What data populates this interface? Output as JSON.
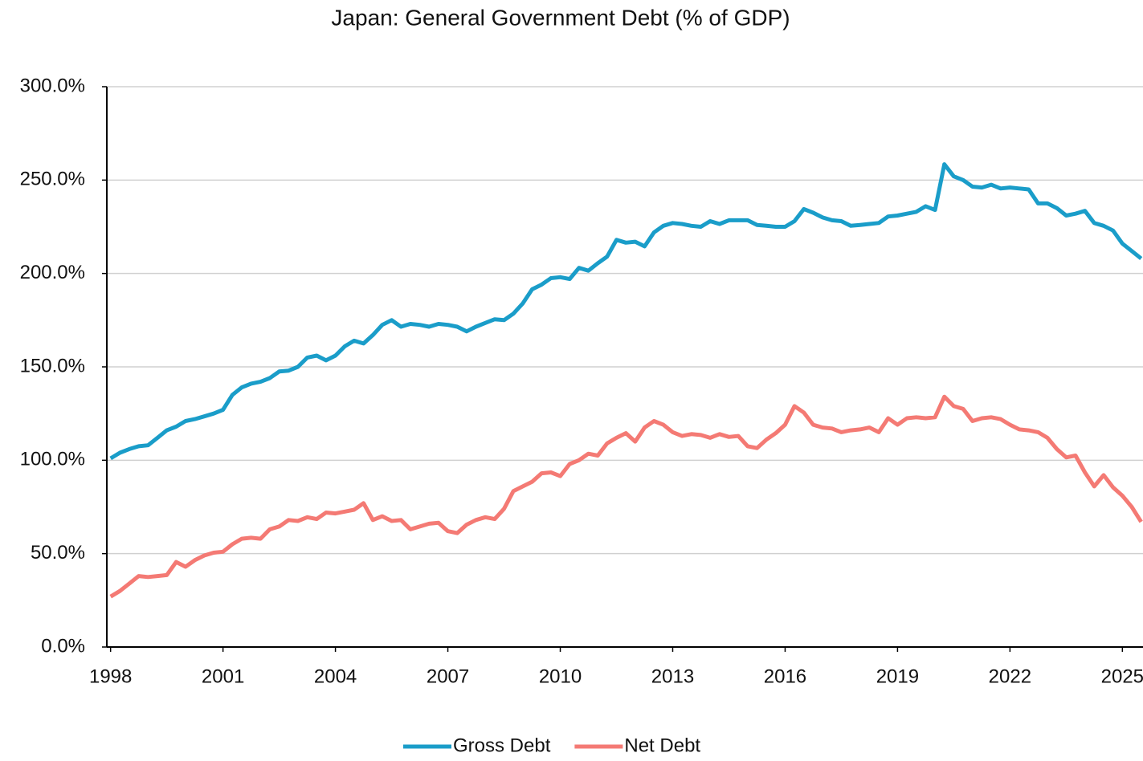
{
  "chart_data": {
    "type": "line",
    "title": "Japan: General Government Debt (% of GDP)",
    "x": [
      1998,
      1998.25,
      1998.5,
      1998.75,
      1999,
      1999.25,
      1999.5,
      1999.75,
      2000,
      2000.25,
      2000.5,
      2000.75,
      2001,
      2001.25,
      2001.5,
      2001.75,
      2002,
      2002.25,
      2002.5,
      2002.75,
      2003,
      2003.25,
      2003.5,
      2003.75,
      2004,
      2004.25,
      2004.5,
      2004.75,
      2005,
      2005.25,
      2005.5,
      2005.75,
      2006,
      2006.25,
      2006.5,
      2006.75,
      2007,
      2007.25,
      2007.5,
      2007.75,
      2008,
      2008.25,
      2008.5,
      2008.75,
      2009,
      2009.25,
      2009.5,
      2009.75,
      2010,
      2010.25,
      2010.5,
      2010.75,
      2011,
      2011.25,
      2011.5,
      2011.75,
      2012,
      2012.25,
      2012.5,
      2012.75,
      2013,
      2013.25,
      2013.5,
      2013.75,
      2014,
      2014.25,
      2014.5,
      2014.75,
      2015,
      2015.25,
      2015.5,
      2015.75,
      2016,
      2016.25,
      2016.5,
      2016.75,
      2017,
      2017.25,
      2017.5,
      2017.75,
      2018,
      2018.25,
      2018.5,
      2018.75,
      2019,
      2019.25,
      2019.5,
      2019.75,
      2020,
      2020.25,
      2020.5,
      2020.75,
      2021,
      2021.25,
      2021.5,
      2021.75,
      2022,
      2022.25,
      2022.5,
      2022.75,
      2023,
      2023.25,
      2023.5,
      2023.75,
      2024,
      2024.25,
      2024.5,
      2024.75,
      2025,
      2025.25,
      2025.5
    ],
    "series": [
      {
        "name": "Gross Debt",
        "color": "#1a9dc9",
        "values": [
          101,
          104,
          106,
          107.5,
          108,
          112,
          116,
          118,
          121,
          122,
          123.5,
          125,
          127,
          135,
          139,
          141,
          142,
          144,
          147.5,
          148,
          150,
          155,
          156,
          153.5,
          156,
          161,
          164,
          162.5,
          167,
          172.5,
          175,
          171.5,
          173,
          172.5,
          171.5,
          173,
          172.5,
          171.5,
          169,
          171.5,
          173.5,
          175.5,
          175,
          178.5,
          184,
          191.5,
          194,
          197.5,
          198,
          197,
          203,
          201.5,
          205.5,
          209,
          218,
          216.5,
          217,
          214.5,
          222,
          225.5,
          227,
          226.5,
          225.5,
          225,
          228,
          226.5,
          228.5,
          228.5,
          228.5,
          226,
          225.5,
          225,
          225,
          228,
          234.5,
          232.5,
          230,
          228.5,
          228,
          225.5,
          226,
          226.5,
          227,
          230.5,
          231,
          232,
          233,
          236,
          234,
          258.5,
          252,
          250,
          246.5,
          246,
          247.5,
          245.5,
          246,
          245.5,
          245,
          237.5,
          237.5,
          235,
          231,
          232,
          233.5,
          227,
          225.5,
          223,
          216,
          212,
          208
        ]
      },
      {
        "name": "Net Debt",
        "color": "#f47a74",
        "values": [
          27,
          30,
          34,
          38,
          37.5,
          38,
          38.5,
          45.5,
          43,
          46.5,
          49,
          50.5,
          51,
          55,
          58,
          58.5,
          58,
          63,
          64.5,
          68,
          67.5,
          69.5,
          68.5,
          72,
          71.5,
          72.5,
          73.5,
          77,
          68,
          70,
          67.5,
          68,
          63,
          64.5,
          66,
          66.5,
          62,
          61,
          65.5,
          68,
          69.5,
          68.5,
          74,
          83.5,
          86,
          88.5,
          93,
          93.5,
          91.5,
          98,
          100,
          103.5,
          102.5,
          109,
          112,
          114.5,
          110,
          117.5,
          121,
          119,
          115,
          113,
          114,
          113.5,
          112,
          114,
          112.5,
          113,
          107.5,
          106.5,
          111,
          114.5,
          119,
          129,
          125.5,
          119,
          117.5,
          117,
          115,
          116,
          116.5,
          117.5,
          115,
          122.5,
          119,
          122.5,
          123,
          122.5,
          123,
          134,
          129,
          127.5,
          121,
          122.5,
          123,
          122,
          119,
          116.5,
          116,
          115,
          112,
          106,
          101.5,
          102.5,
          93.5,
          86,
          92,
          85.5,
          81,
          75,
          67
        ]
      }
    ],
    "xlim": [
      1997.9,
      2025.55
    ],
    "xticks": [
      1998,
      2001,
      2004,
      2007,
      2010,
      2013,
      2016,
      2019,
      2022,
      2025
    ],
    "ylim": [
      0,
      300
    ],
    "yticks": [
      {
        "value": 0,
        "label": "0.0%"
      },
      {
        "value": 50,
        "label": "50.0%"
      },
      {
        "value": 100,
        "label": "100.0%"
      },
      {
        "value": 150,
        "label": "150.0%"
      },
      {
        "value": 200,
        "label": "200.0%"
      },
      {
        "value": 250,
        "label": "250.0%"
      },
      {
        "value": 300,
        "label": "300.0%"
      }
    ],
    "grid": true,
    "legend": "bottom"
  }
}
